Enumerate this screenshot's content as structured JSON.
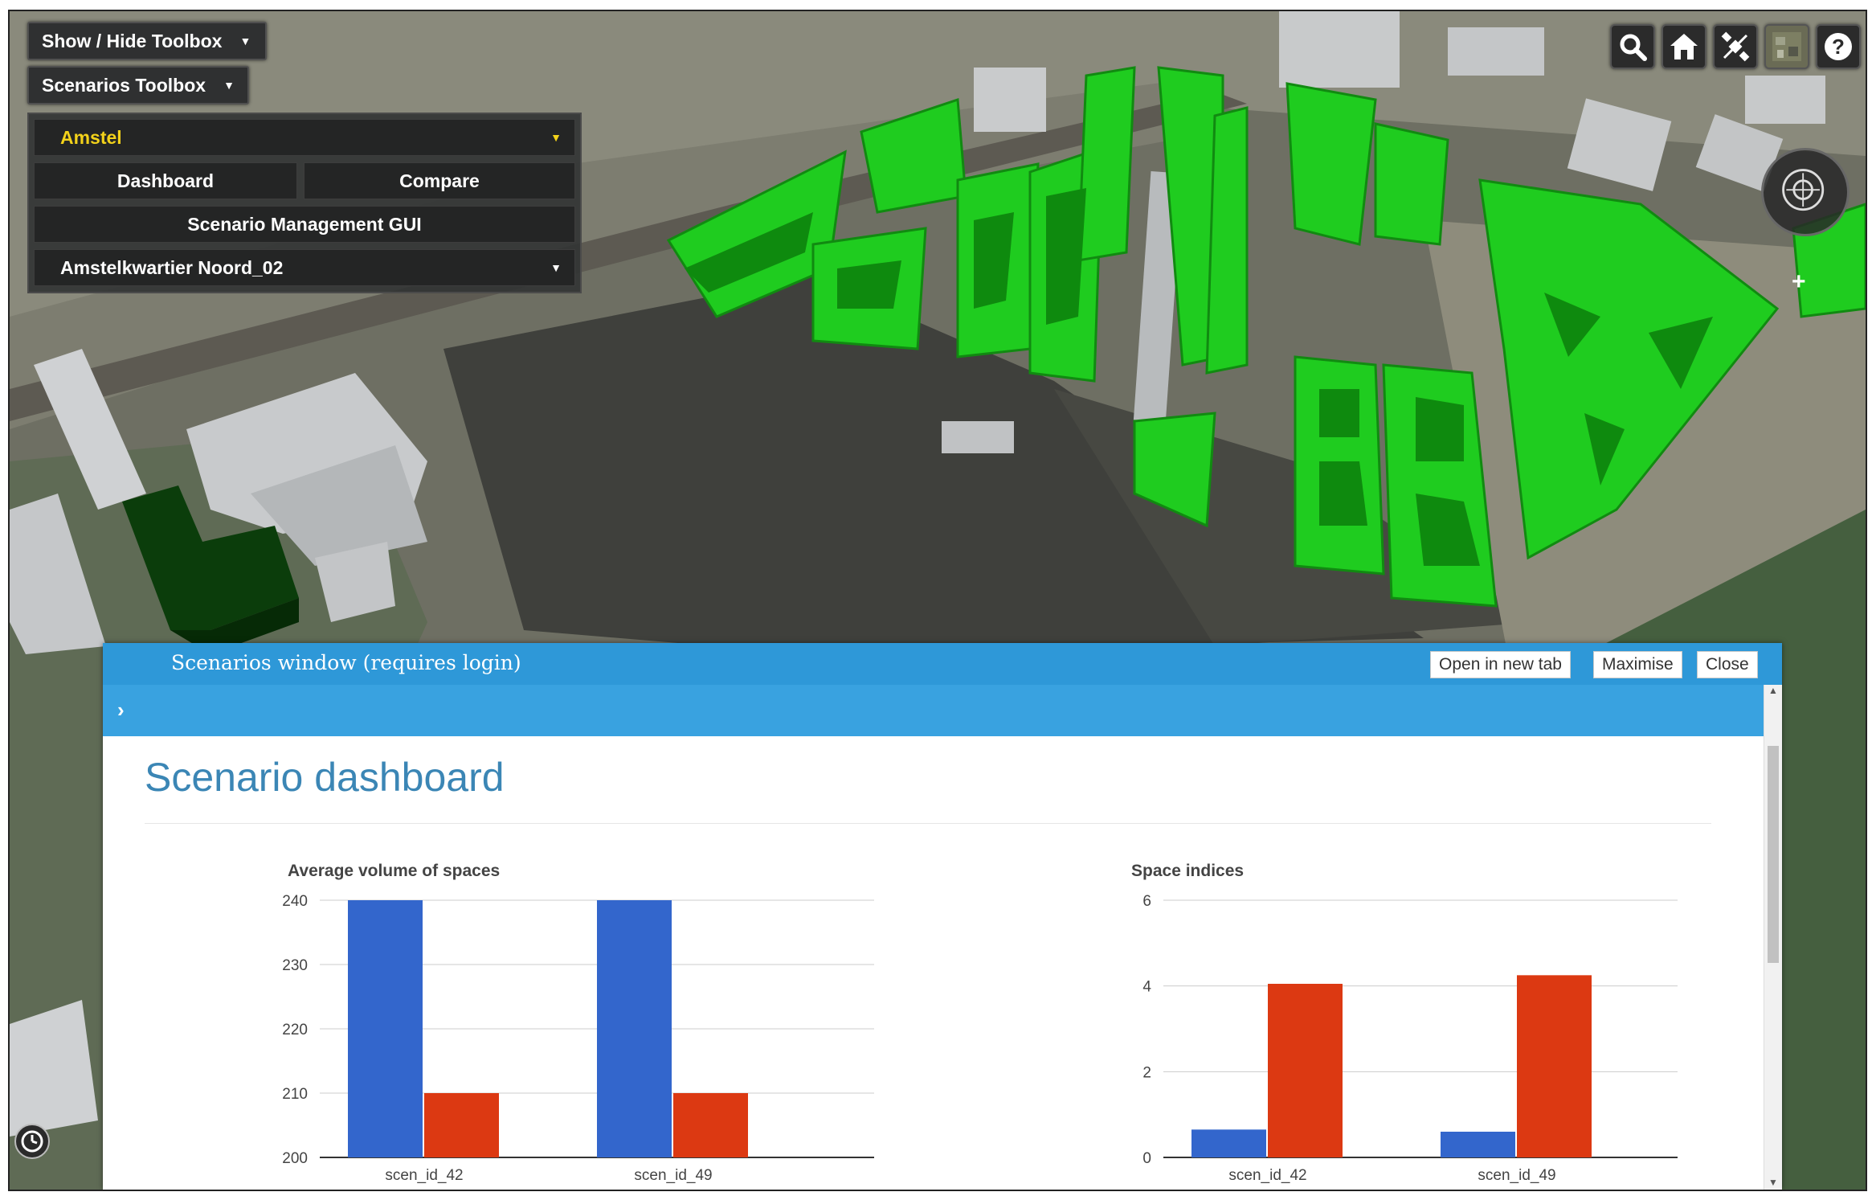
{
  "toolbar": {
    "show_hide_label": "Show / Hide Toolbox",
    "scenarios_label": "Scenarios Toolbox"
  },
  "toolbox": {
    "selected_area": "Amstel",
    "dashboard_label": "Dashboard",
    "compare_label": "Compare",
    "management_label": "Scenario Management GUI",
    "selected_scenario": "Amstelkwartier Noord_02"
  },
  "map_controls": {
    "icons": [
      "search-icon",
      "home-icon",
      "satellite-icon",
      "imagery-layer-icon",
      "help-icon"
    ]
  },
  "window": {
    "title": "Scenarios window (requires login)",
    "open_new_tab_label": "Open in new tab",
    "maximise_label": "Maximise",
    "close_label": "Close",
    "header_color": "#2e98d8",
    "bar_color": "#39a2e0"
  },
  "dashboard": {
    "title": "Scenario dashboard"
  },
  "colors": {
    "series_blue": "#3366cc",
    "series_red": "#dc3912",
    "building_green": "#1fcc1f"
  },
  "chart_data": [
    {
      "type": "bar",
      "title": "Average volume of spaces",
      "categories": [
        "scen_id_42",
        "scen_id_49"
      ],
      "series": [
        {
          "values": [
            240,
            240
          ]
        },
        {
          "values": [
            210,
            210
          ]
        }
      ],
      "ylim": [
        200,
        240
      ],
      "yticks": [
        200,
        210,
        220,
        230,
        240
      ],
      "grid": true
    },
    {
      "type": "bar",
      "title": "Space indices",
      "categories": [
        "scen_id_42",
        "scen_id_49"
      ],
      "series": [
        {
          "values": [
            0.65,
            0.6
          ]
        },
        {
          "values": [
            4.05,
            4.25
          ]
        }
      ],
      "ylim": [
        0,
        6
      ],
      "yticks": [
        0,
        2,
        4,
        6
      ],
      "grid": true
    }
  ]
}
